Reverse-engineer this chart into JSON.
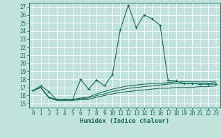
{
  "xlabel": "Humidex (Indice chaleur)",
  "bg_color": "#c0e4dc",
  "grid_color": "#ffffff",
  "line_color": "#1a6b5e",
  "xlim": [
    -0.5,
    23.5
  ],
  "ylim": [
    14.5,
    27.5
  ],
  "xticks": [
    0,
    1,
    2,
    3,
    4,
    5,
    6,
    7,
    8,
    9,
    10,
    11,
    12,
    13,
    14,
    15,
    16,
    17,
    18,
    19,
    20,
    21,
    22,
    23
  ],
  "yticks": [
    15,
    16,
    17,
    18,
    19,
    20,
    21,
    22,
    23,
    24,
    25,
    26,
    27
  ],
  "main_y": [
    16.6,
    17.2,
    16.5,
    15.5,
    15.5,
    15.5,
    18.0,
    16.8,
    17.9,
    17.2,
    18.6,
    24.2,
    27.2,
    24.4,
    26.0,
    25.5,
    24.7,
    17.9,
    17.8,
    17.5,
    17.5,
    17.4,
    17.4,
    17.4
  ],
  "line2_y": [
    16.6,
    17.0,
    15.8,
    15.5,
    15.5,
    15.5,
    15.7,
    15.8,
    16.2,
    16.5,
    16.8,
    17.0,
    17.2,
    17.3,
    17.4,
    17.5,
    17.5,
    17.6,
    17.7,
    17.7,
    17.7,
    17.7,
    17.7,
    17.8
  ],
  "line3_y": [
    16.6,
    17.0,
    15.8,
    15.5,
    15.4,
    15.5,
    15.6,
    15.7,
    16.0,
    16.2,
    16.5,
    16.7,
    16.9,
    17.0,
    17.1,
    17.2,
    17.3,
    17.4,
    17.5,
    17.5,
    17.5,
    17.5,
    17.5,
    17.6
  ],
  "line4_y": [
    16.6,
    17.0,
    15.7,
    15.4,
    15.4,
    15.4,
    15.5,
    15.5,
    15.8,
    16.0,
    16.2,
    16.4,
    16.5,
    16.6,
    16.7,
    16.8,
    16.9,
    16.9,
    17.0,
    17.0,
    17.0,
    17.1,
    17.1,
    17.2
  ],
  "tick_fontsize": 5.5,
  "xlabel_fontsize": 6.5
}
